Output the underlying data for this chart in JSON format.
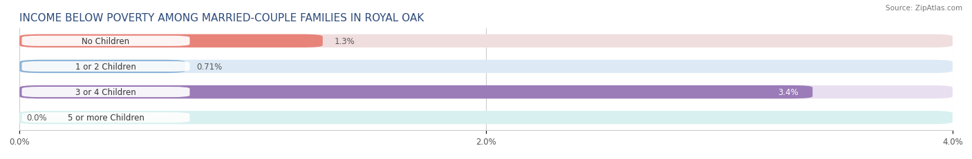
{
  "title": "INCOME BELOW POVERTY AMONG MARRIED-COUPLE FAMILIES IN ROYAL OAK",
  "source": "Source: ZipAtlas.com",
  "categories": [
    "No Children",
    "1 or 2 Children",
    "3 or 4 Children",
    "5 or more Children"
  ],
  "values": [
    1.3,
    0.71,
    3.4,
    0.0
  ],
  "labels": [
    "1.3%",
    "0.71%",
    "3.4%",
    "0.0%"
  ],
  "bar_colors": [
    "#e8837a",
    "#8db4d8",
    "#9b7bb8",
    "#6ecece"
  ],
  "bg_colors": [
    "#f0dede",
    "#ddeaf6",
    "#e8e0f0",
    "#d8f0f0"
  ],
  "label_bg_colors": [
    "#e8837a",
    "#8db4d8",
    "#9b7bb8",
    "#6ecece"
  ],
  "xlim": [
    0,
    4.0
  ],
  "xticks": [
    0.0,
    2.0,
    4.0
  ],
  "xtick_labels": [
    "0.0%",
    "2.0%",
    "4.0%"
  ],
  "title_fontsize": 11,
  "label_fontsize": 8.5,
  "tick_fontsize": 8.5,
  "bar_height": 0.52,
  "figure_bg": "#ffffff",
  "label_inside_bar": [
    false,
    false,
    true,
    false
  ],
  "value_label_color": [
    "#555555",
    "#555555",
    "#ffffff",
    "#555555"
  ]
}
